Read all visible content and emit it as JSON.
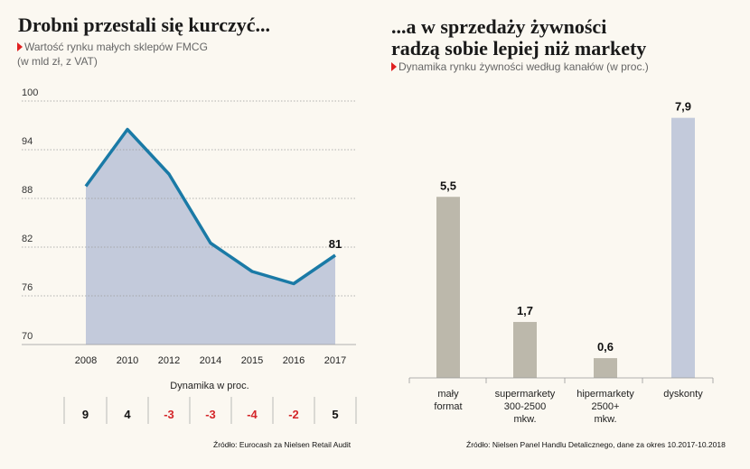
{
  "left": {
    "title": "Drobni przestali się kurczyć...",
    "subtitle_line1": "Wartość rynku małych sklepów FMCG",
    "subtitle_line2": "(w mld zł, z VAT)",
    "dynamics_title": "Dynamika w proc.",
    "source": "Źródło: Eurocash za Nielsen Retail Audit"
  },
  "right": {
    "title_line1": "...a w sprzedaży żywności",
    "title_line2": "radzą sobie lepiej niż markety",
    "subtitle": "Dynamika rynku żywności według kanałów (w proc.)",
    "source": "Źródło: Nielsen Panel Handlu Detalicznego, dane za okres 10.2017-10.2018"
  },
  "colors": {
    "line": "#1a7aa6",
    "area": "#c3cadb",
    "bar_gray": "#bcb8ab",
    "bar_blue": "#c3cadb",
    "negative": "#d4262a",
    "accent": "#e02020"
  },
  "chart_data": [
    {
      "type": "area",
      "title": "Drobni przestali się kurczyć...",
      "x": [
        "2008",
        "2010",
        "2012",
        "2014",
        "2015",
        "2016",
        "2017"
      ],
      "y": [
        89.5,
        96.5,
        91.0,
        82.5,
        79.0,
        77.5,
        81.0
      ],
      "yticks": [
        70,
        76,
        82,
        88,
        94,
        100
      ],
      "ylim": [
        70,
        100
      ],
      "annotations": [
        {
          "x": "2017",
          "label": "81"
        }
      ],
      "dynamics": [
        "9",
        "4",
        "-3",
        "-3",
        "-4",
        "-2",
        "5"
      ],
      "grid": true
    },
    {
      "type": "bar",
      "title": "...a w sprzedaży żywności radzą sobie lepiej niż markety",
      "categories": [
        [
          "mały",
          "format"
        ],
        [
          "supermarkety",
          "300-2500",
          "mkw."
        ],
        [
          "hipermarkety",
          "2500+",
          "mkw."
        ],
        [
          "dyskonty"
        ]
      ],
      "values": [
        5.5,
        1.7,
        0.6,
        7.9
      ],
      "labels": [
        "5,5",
        "1,7",
        "0,6",
        "7,9"
      ],
      "highlight": [
        false,
        false,
        false,
        true
      ]
    }
  ]
}
